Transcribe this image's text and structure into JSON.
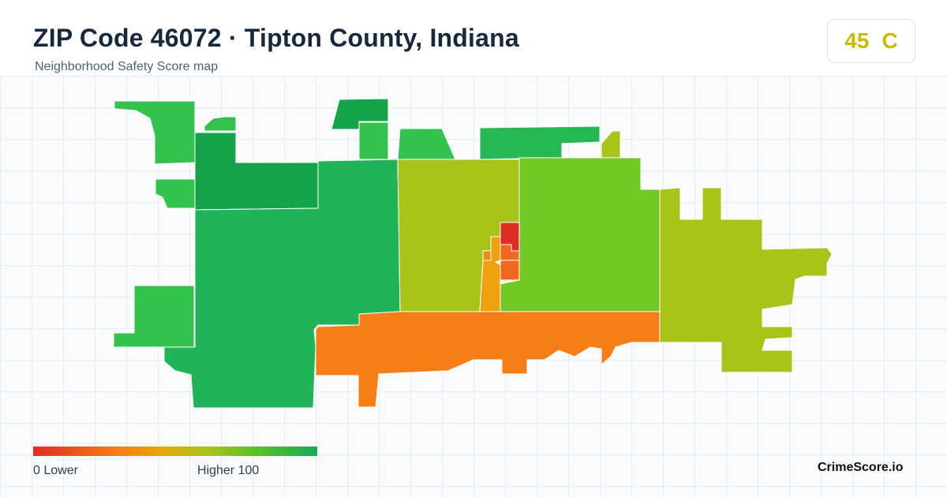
{
  "header": {
    "title": "ZIP Code 46072 · Tipton County, Indiana",
    "subtitle": "Neighborhood Safety Score map"
  },
  "score": {
    "value": "45",
    "grade": "C",
    "color": "#c9b800"
  },
  "legend": {
    "min_label": "0  Lower",
    "max_label": "Higher  100",
    "colors": [
      "#de2d26",
      "#f57f17",
      "#e6a70a",
      "#a6c41a",
      "#5cbf2a",
      "#1aab55"
    ]
  },
  "brand": "CrimeScore.io",
  "map": {
    "regions": [
      {
        "name": "region-northwest-upper",
        "color": "#34c24f"
      },
      {
        "name": "region-north-small-1",
        "color": "#34c24f"
      },
      {
        "name": "region-north-small-2",
        "color": "#16a34a"
      },
      {
        "name": "region-north-small-3",
        "color": "#34c24f"
      },
      {
        "name": "region-north-small-4",
        "color": "#34c24f"
      },
      {
        "name": "region-northeast-strip",
        "color": "#26b853"
      },
      {
        "name": "region-northeast-tip",
        "color": "#a6c41a"
      },
      {
        "name": "region-west-dark",
        "color": "#16a34a"
      },
      {
        "name": "region-west-notch",
        "color": "#34c24f"
      },
      {
        "name": "region-west-main",
        "color": "#20b358"
      },
      {
        "name": "region-west-lobe",
        "color": "#34c24f"
      },
      {
        "name": "region-center-west",
        "color": "#a6c41a"
      },
      {
        "name": "region-center-east",
        "color": "#72c824"
      },
      {
        "name": "region-east",
        "color": "#a6c41a"
      },
      {
        "name": "region-south",
        "color": "#f77e17"
      },
      {
        "name": "region-downtown-north",
        "color": "#de2d26"
      },
      {
        "name": "region-downtown-center",
        "color": "#f06820"
      },
      {
        "name": "region-downtown-south",
        "color": "#f06820"
      },
      {
        "name": "region-downtown-west",
        "color": "#f0a00c"
      },
      {
        "name": "region-downtown-spot",
        "color": "#f08a16"
      }
    ]
  }
}
